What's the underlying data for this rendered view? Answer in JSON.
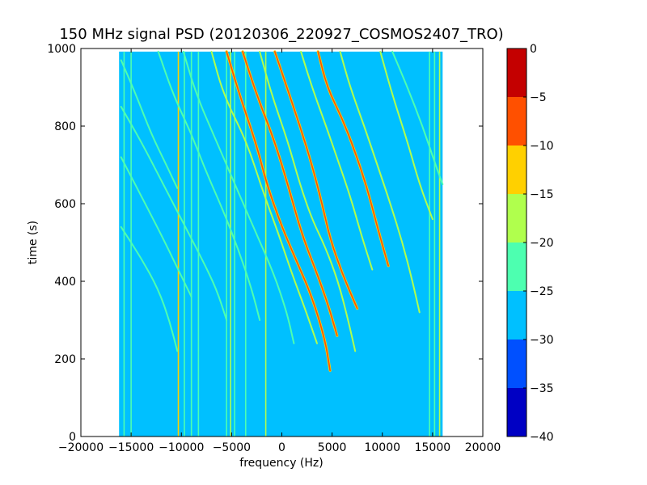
{
  "chart_data": {
    "type": "heatmap",
    "title": "150 MHz signal PSD (20120306_220927_COSMOS2407_TRO)",
    "xlabel": "frequency (Hz)",
    "ylabel": "time (s)",
    "xlim": [
      -20000,
      20000
    ],
    "ylim": [
      0,
      1000
    ],
    "x_ticks": [
      -20000,
      -15000,
      -10000,
      -5000,
      0,
      5000,
      10000,
      15000,
      20000
    ],
    "y_ticks": [
      0,
      200,
      400,
      600,
      800,
      1000
    ],
    "data_extent": {
      "x": [
        -16200,
        16000
      ],
      "y": [
        0,
        992
      ]
    },
    "background_level": -27.5,
    "colorbar": {
      "range": [
        -40,
        0
      ],
      "ticks": [
        0,
        -5,
        -10,
        -15,
        -20,
        -25,
        -30,
        -35,
        -40
      ],
      "levels": [
        {
          "from": -40,
          "to": -35,
          "color": "#0000c4"
        },
        {
          "from": -35,
          "to": -30,
          "color": "#0050ff"
        },
        {
          "from": -30,
          "to": -25,
          "color": "#00c0ff"
        },
        {
          "from": -25,
          "to": -20,
          "color": "#4dffb0"
        },
        {
          "from": -20,
          "to": -15,
          "color": "#b0ff4d"
        },
        {
          "from": -15,
          "to": -10,
          "color": "#ffd000"
        },
        {
          "from": -10,
          "to": -5,
          "color": "#ff5000"
        },
        {
          "from": -5,
          "to": 0,
          "color": "#c40000"
        }
      ]
    },
    "vertical_lines": [
      {
        "x": -15700,
        "t0": 0,
        "t1": 992,
        "level": -22.5
      },
      {
        "x": -15000,
        "t0": 0,
        "t1": 992,
        "level": -22.5
      },
      {
        "x": -10300,
        "t0": 0,
        "t1": 992,
        "level": -12.5
      },
      {
        "x": -9700,
        "t0": 0,
        "t1": 992,
        "level": -22.5
      },
      {
        "x": -9000,
        "t0": 0,
        "t1": 992,
        "level": -22.5
      },
      {
        "x": -8300,
        "t0": 0,
        "t1": 992,
        "level": -22.5
      },
      {
        "x": -5500,
        "t0": 0,
        "t1": 992,
        "level": -22.5
      },
      {
        "x": -5100,
        "t0": 0,
        "t1": 992,
        "level": -17.5
      },
      {
        "x": -4700,
        "t0": 0,
        "t1": 992,
        "level": -22.5
      },
      {
        "x": -3600,
        "t0": 0,
        "t1": 992,
        "level": -22.5
      },
      {
        "x": -1600,
        "t0": 0,
        "t1": 992,
        "level": -17.5
      },
      {
        "x": 14700,
        "t0": 0,
        "t1": 992,
        "level": -22.5
      },
      {
        "x": 15200,
        "t0": 0,
        "t1": 992,
        "level": -22.5
      },
      {
        "x": 15700,
        "t0": 0,
        "t1": 992,
        "level": -17.5
      }
    ],
    "traces": [
      {
        "level": -7.5,
        "points": [
          [
            -5500,
            992
          ],
          [
            -4200,
            880
          ],
          [
            -2500,
            750
          ],
          [
            -1500,
            650
          ],
          [
            0,
            540
          ],
          [
            1500,
            450
          ],
          [
            3000,
            360
          ],
          [
            4300,
            250
          ],
          [
            4800,
            170
          ]
        ]
      },
      {
        "level": -7.5,
        "points": [
          [
            -3900,
            992
          ],
          [
            -2500,
            880
          ],
          [
            -700,
            760
          ],
          [
            700,
            640
          ],
          [
            2000,
            520
          ],
          [
            3500,
            420
          ],
          [
            4600,
            340
          ],
          [
            5500,
            260
          ]
        ]
      },
      {
        "level": -7.5,
        "points": [
          [
            -700,
            992
          ],
          [
            500,
            900
          ],
          [
            1800,
            800
          ],
          [
            3000,
            700
          ],
          [
            4000,
            600
          ],
          [
            4800,
            510
          ],
          [
            6000,
            420
          ],
          [
            7500,
            330
          ]
        ]
      },
      {
        "level": -7.5,
        "points": [
          [
            3600,
            992
          ],
          [
            4500,
            900
          ],
          [
            6000,
            820
          ],
          [
            7200,
            740
          ],
          [
            8500,
            640
          ],
          [
            9500,
            540
          ],
          [
            10600,
            440
          ]
        ]
      },
      {
        "level": -17.5,
        "points": [
          [
            -7000,
            992
          ],
          [
            -5800,
            880
          ],
          [
            -3500,
            760
          ],
          [
            -2000,
            640
          ],
          [
            -300,
            520
          ],
          [
            1000,
            420
          ],
          [
            2300,
            330
          ],
          [
            3500,
            240
          ]
        ]
      },
      {
        "level": -17.5,
        "points": [
          [
            -2200,
            992
          ],
          [
            -1000,
            880
          ],
          [
            600,
            760
          ],
          [
            1800,
            650
          ],
          [
            3000,
            560
          ],
          [
            4300,
            490
          ],
          [
            5600,
            400
          ],
          [
            6600,
            300
          ],
          [
            7300,
            220
          ]
        ]
      },
      {
        "level": -17.5,
        "points": [
          [
            1900,
            992
          ],
          [
            3000,
            900
          ],
          [
            4400,
            800
          ],
          [
            5600,
            710
          ],
          [
            6800,
            620
          ],
          [
            7900,
            520
          ],
          [
            9000,
            430
          ]
        ]
      },
      {
        "level": -17.5,
        "points": [
          [
            5800,
            992
          ],
          [
            6800,
            900
          ],
          [
            8200,
            800
          ],
          [
            9500,
            700
          ],
          [
            10800,
            600
          ],
          [
            12000,
            500
          ],
          [
            13000,
            400
          ],
          [
            13700,
            320
          ]
        ]
      },
      {
        "level": -17.5,
        "points": [
          [
            9800,
            992
          ],
          [
            11000,
            880
          ],
          [
            12500,
            760
          ],
          [
            13700,
            650
          ],
          [
            15000,
            560
          ]
        ]
      },
      {
        "level": -22.5,
        "points": [
          [
            -9800,
            992
          ],
          [
            -8500,
            880
          ],
          [
            -6500,
            760
          ],
          [
            -4500,
            640
          ],
          [
            -2500,
            520
          ],
          [
            -800,
            420
          ],
          [
            500,
            320
          ],
          [
            1200,
            240
          ]
        ]
      },
      {
        "level": -22.5,
        "points": [
          [
            -12300,
            992
          ],
          [
            -10800,
            880
          ],
          [
            -9000,
            780
          ],
          [
            -7500,
            680
          ],
          [
            -5800,
            580
          ],
          [
            -4300,
            480
          ],
          [
            -3000,
            380
          ],
          [
            -2200,
            300
          ]
        ]
      },
      {
        "level": -22.5,
        "points": [
          [
            -16000,
            850
          ],
          [
            -14000,
            760
          ],
          [
            -12000,
            660
          ],
          [
            -10000,
            560
          ],
          [
            -8000,
            460
          ],
          [
            -6500,
            380
          ],
          [
            -5500,
            300
          ]
        ]
      },
      {
        "level": -22.5,
        "points": [
          [
            -16000,
            720
          ],
          [
            -14000,
            620
          ],
          [
            -12000,
            520
          ],
          [
            -10500,
            440
          ],
          [
            -9000,
            360
          ]
        ]
      },
      {
        "level": -22.5,
        "points": [
          [
            -16000,
            540
          ],
          [
            -14000,
            460
          ],
          [
            -12300,
            380
          ],
          [
            -11200,
            300
          ],
          [
            -10400,
            220
          ]
        ]
      },
      {
        "level": -22.5,
        "points": [
          [
            -16000,
            970
          ],
          [
            -14500,
            880
          ],
          [
            -13000,
            780
          ],
          [
            -11500,
            700
          ],
          [
            -10400,
            640
          ]
        ]
      },
      {
        "level": -22.5,
        "points": [
          [
            11000,
            992
          ],
          [
            12500,
            900
          ],
          [
            14000,
            800
          ],
          [
            15300,
            700
          ],
          [
            16000,
            650
          ]
        ]
      }
    ]
  }
}
